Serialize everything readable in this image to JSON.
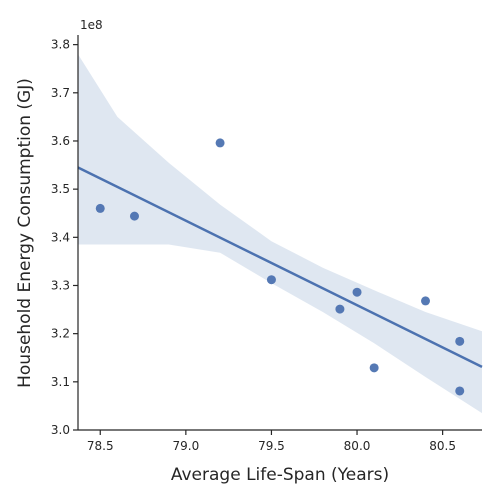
{
  "chart_data": {
    "type": "scatter",
    "xlabel": "Average Life-Span (Years)",
    "ylabel": "Household Energy Consumption (GJ)",
    "y_offset_label": "1e8",
    "xlim": [
      78.37,
      80.73
    ],
    "ylim": [
      3.0,
      3.82
    ],
    "x_ticks": [
      78.5,
      79.0,
      79.5,
      80.0,
      80.5
    ],
    "x_tick_labels": [
      "78.5",
      "79.0",
      "79.5",
      "80.0",
      "80.5"
    ],
    "y_ticks": [
      3.0,
      3.1,
      3.2,
      3.3,
      3.4,
      3.5,
      3.6,
      3.7,
      3.8
    ],
    "y_tick_labels": [
      "3.0",
      "3.1",
      "3.2",
      "3.3",
      "3.4",
      "3.5",
      "3.6",
      "3.7",
      "3.8"
    ],
    "grid": false,
    "points": [
      {
        "x": 78.5,
        "y": 3.46
      },
      {
        "x": 78.7,
        "y": 3.444
      },
      {
        "x": 79.2,
        "y": 3.596
      },
      {
        "x": 79.5,
        "y": 3.312
      },
      {
        "x": 79.9,
        "y": 3.251
      },
      {
        "x": 80.0,
        "y": 3.286
      },
      {
        "x": 80.1,
        "y": 3.129
      },
      {
        "x": 80.4,
        "y": 3.268
      },
      {
        "x": 80.6,
        "y": 3.184
      },
      {
        "x": 80.6,
        "y": 3.081
      }
    ],
    "regression": {
      "x": [
        78.37,
        80.73
      ],
      "y": [
        3.545,
        3.131
      ]
    },
    "confidence_band": {
      "x": [
        78.37,
        78.6,
        78.9,
        79.2,
        79.5,
        79.8,
        80.1,
        80.4,
        80.73
      ],
      "upper": [
        3.78,
        3.65,
        3.555,
        3.468,
        3.392,
        3.337,
        3.29,
        3.245,
        3.205
      ],
      "lower": [
        3.385,
        3.385,
        3.385,
        3.368,
        3.305,
        3.245,
        3.18,
        3.11,
        3.035
      ]
    },
    "colors": {
      "point": "#4c72b0",
      "line": "#4c72b0",
      "band": "#dce4f0",
      "axis": "#262626"
    }
  }
}
